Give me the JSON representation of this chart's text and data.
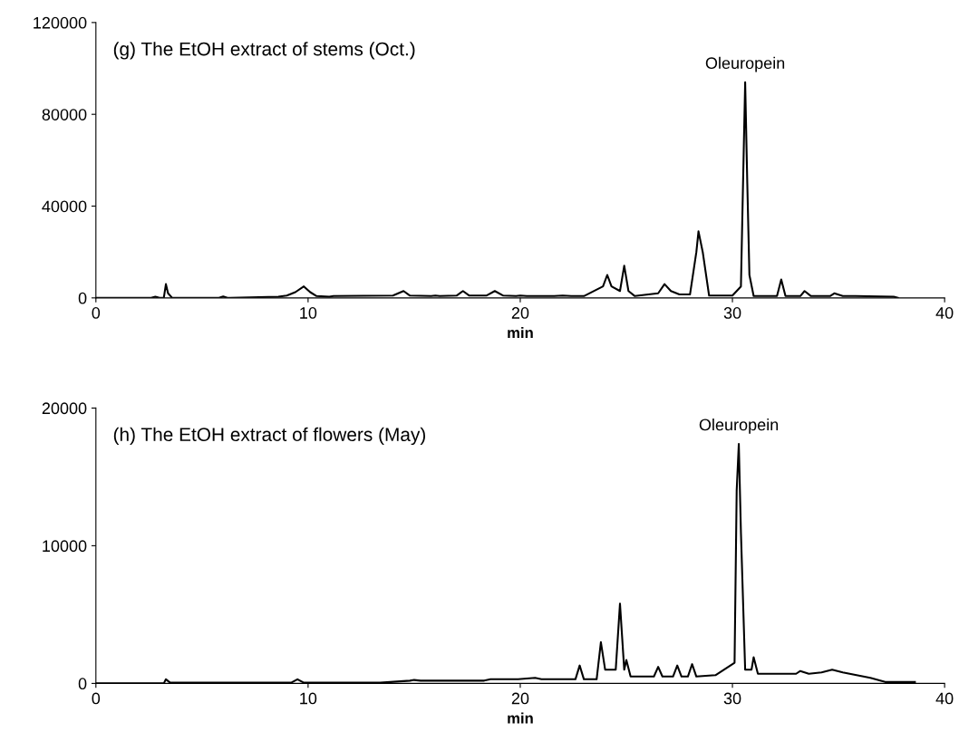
{
  "chart_data": [
    {
      "type": "line",
      "xlabel": "min",
      "annotations": [
        "(g) The EtOH extract of stems (Oct.)",
        {
          "text": "Oleuropein",
          "x": 30.6,
          "y": 94000
        }
      ],
      "series": [
        {
          "color": "#000000",
          "x": [
            0,
            2.6,
            2.8,
            3.0,
            3.2,
            3.3,
            3.4,
            3.6,
            5.8,
            6.0,
            6.2,
            8.6,
            9.0,
            9.4,
            9.8,
            10.1,
            10.4,
            11.0,
            11.2,
            14.0,
            14.5,
            14.8,
            15.8,
            16.0,
            16.2,
            17.0,
            17.3,
            17.6,
            18.4,
            18.8,
            19.2,
            19.8,
            20.0,
            20.3,
            21.6,
            22.0,
            22.4,
            23.0,
            23.9,
            24.1,
            24.3,
            24.7,
            24.9,
            25.1,
            25.4,
            26.5,
            26.8,
            27.1,
            27.5,
            28.0,
            28.3,
            28.4,
            28.6,
            28.9,
            30.0,
            30.4,
            30.5,
            30.6,
            30.7,
            30.8,
            31.0,
            32.1,
            32.3,
            32.5,
            33.2,
            33.4,
            33.7,
            34.6,
            34.8,
            35.2,
            35.8,
            37.6,
            37.8
          ],
          "values": [
            0,
            0,
            500,
            0,
            0,
            6000,
            2000,
            0,
            0,
            600,
            0,
            500,
            1000,
            2500,
            5000,
            2500,
            800,
            500,
            800,
            1000,
            3000,
            1000,
            800,
            1000,
            800,
            1000,
            3000,
            1000,
            1000,
            3000,
            1000,
            800,
            1000,
            800,
            800,
            1000,
            800,
            800,
            5000,
            10000,
            5000,
            3000,
            14000,
            3000,
            800,
            2000,
            6000,
            3000,
            1500,
            1500,
            20000,
            29000,
            20000,
            1000,
            1000,
            5000,
            50000,
            94000,
            50000,
            10000,
            800,
            800,
            8000,
            800,
            800,
            3000,
            800,
            800,
            2000,
            800,
            800,
            500,
            0
          ]
        }
      ],
      "xlim": [
        0,
        40
      ],
      "xticks": [
        0,
        10,
        20,
        30,
        40
      ],
      "ylim": [
        0,
        120000
      ],
      "yticks": [
        0,
        40000,
        80000,
        120000
      ],
      "grid": false,
      "legend": false,
      "marker": "none",
      "line_style": "solid"
    },
    {
      "type": "line",
      "xlabel": "min",
      "annotations": [
        "(h) The EtOH extract of flowers (May)",
        {
          "text": "Oleuropein",
          "x": 30.3,
          "y": 17400
        }
      ],
      "series": [
        {
          "color": "#000000",
          "x": [
            0,
            3.2,
            3.3,
            3.5,
            9.2,
            9.5,
            9.8,
            13.4,
            14.8,
            15.0,
            15.3,
            18.3,
            18.6,
            19.9,
            20.7,
            21.0,
            22.6,
            22.8,
            23.0,
            23.6,
            23.8,
            24.0,
            24.5,
            24.7,
            24.9,
            25.0,
            25.2,
            26.3,
            26.5,
            26.7,
            27.2,
            27.4,
            27.6,
            27.9,
            28.1,
            28.3,
            29.2,
            30.1,
            30.2,
            30.3,
            30.4,
            30.6,
            30.9,
            31.0,
            31.2,
            33.0,
            33.2,
            33.6,
            34.2,
            34.7,
            35.2,
            36.5,
            37.2,
            38.6
          ],
          "values": [
            0,
            0,
            300,
            50,
            50,
            300,
            50,
            50,
            200,
            250,
            200,
            200,
            300,
            300,
            400,
            300,
            300,
            1300,
            300,
            300,
            3000,
            1000,
            1000,
            5800,
            1000,
            1700,
            500,
            500,
            1200,
            500,
            500,
            1300,
            500,
            500,
            1400,
            500,
            600,
            1500,
            14000,
            17400,
            11000,
            1000,
            1000,
            1900,
            700,
            700,
            900,
            700,
            800,
            1000,
            800,
            400,
            100,
            100
          ]
        }
      ],
      "xlim": [
        0,
        40
      ],
      "xticks": [
        0,
        10,
        20,
        30,
        40
      ],
      "ylim": [
        0,
        20000
      ],
      "yticks": [
        0,
        10000,
        20000
      ],
      "grid": false,
      "legend": false,
      "marker": "none",
      "line_style": "solid"
    }
  ]
}
